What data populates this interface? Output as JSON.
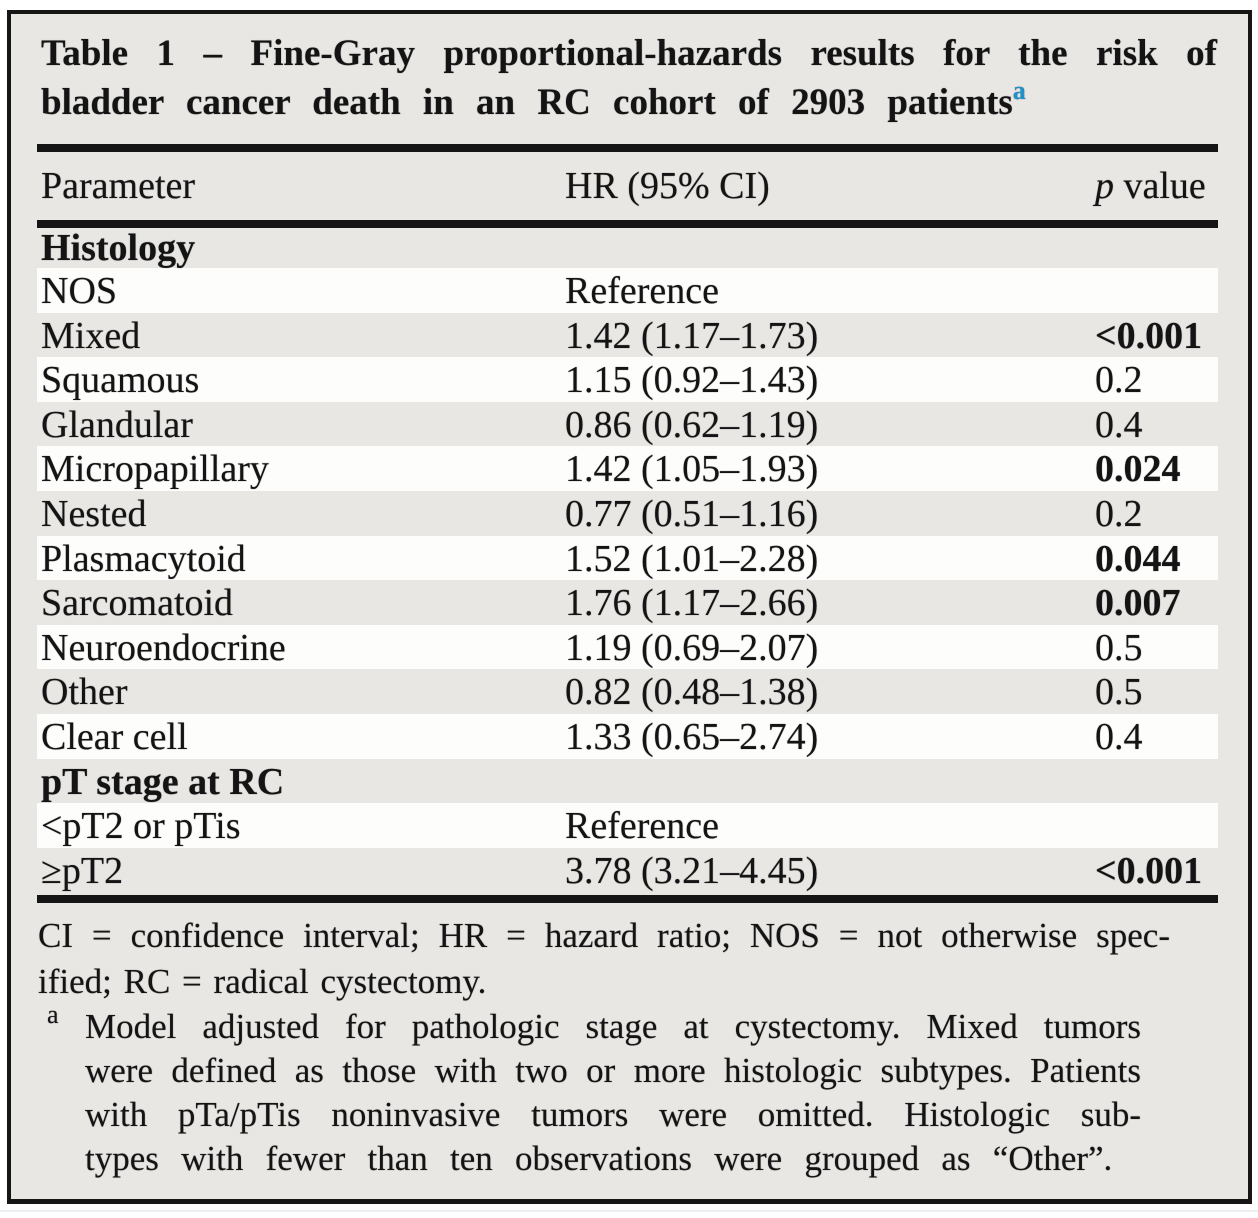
{
  "colors": {
    "page_background": "#ffffff",
    "table_background": "#e8e7e4",
    "stripe": "#fdfdfc",
    "ink": "#141414",
    "footnote_link_blue": "#2090c8"
  },
  "caption": {
    "line1": "Table 1 – Fine-Gray proportional-hazards results for the risk of",
    "line2": "bladder cancer death in an RC cohort of 2903 patients",
    "footnote_marker": "a"
  },
  "columns": {
    "parameter": "Parameter",
    "hr": "HR (95% CI)",
    "p_em": "p",
    "p_rest": " value"
  },
  "rows": [
    {
      "parameter": "Histology",
      "hr": "",
      "p": ""
    },
    {
      "parameter": "NOS",
      "hr": "Reference",
      "p": ""
    },
    {
      "parameter": "Mixed",
      "hr": "1.42 (1.17–1.73)",
      "p": "<0.001"
    },
    {
      "parameter": "Squamous",
      "hr": "1.15 (0.92–1.43)",
      "p": "0.2"
    },
    {
      "parameter": "Glandular",
      "hr": "0.86 (0.62–1.19)",
      "p": "0.4"
    },
    {
      "parameter": "Micropapillary",
      "hr": "1.42 (1.05–1.93)",
      "p": "0.024"
    },
    {
      "parameter": "Nested",
      "hr": "0.77 (0.51–1.16)",
      "p": "0.2"
    },
    {
      "parameter": "Plasmacytoid",
      "hr": "1.52 (1.01–2.28)",
      "p": "0.044"
    },
    {
      "parameter": "Sarcomatoid",
      "hr": "1.76 (1.17–2.66)",
      "p": "0.007"
    },
    {
      "parameter": "Neuroendocrine",
      "hr": "1.19 (0.69–2.07)",
      "p": "0.5"
    },
    {
      "parameter": "Other",
      "hr": "0.82 (0.48–1.38)",
      "p": "0.5"
    },
    {
      "parameter": "Clear cell",
      "hr": "1.33 (0.65–2.74)",
      "p": "0.4"
    },
    {
      "parameter": "pT stage at RC",
      "hr": "",
      "p": ""
    },
    {
      "parameter": "<pT2 or pTis",
      "hr": "Reference",
      "p": ""
    },
    {
      "parameter": "≥pT2",
      "hr": "3.78 (3.21–4.45)",
      "p": "<0.001"
    }
  ],
  "footnotes": {
    "abbrev": {
      "line1": "CI = confidence interval; HR = hazard ratio; NOS = not otherwise spec-",
      "line2": "ified; RC = radical cystectomy."
    },
    "model": {
      "marker": "a",
      "line1": "Model adjusted for pathologic stage at cystectomy. Mixed tumors",
      "line2": "were defined as those with two or more histologic subtypes. Patients",
      "line3": "with pTa/pTis noninvasive tumors were omitted. Histologic sub-",
      "line4": "types with fewer than ten observations were grouped as “Other”."
    }
  }
}
